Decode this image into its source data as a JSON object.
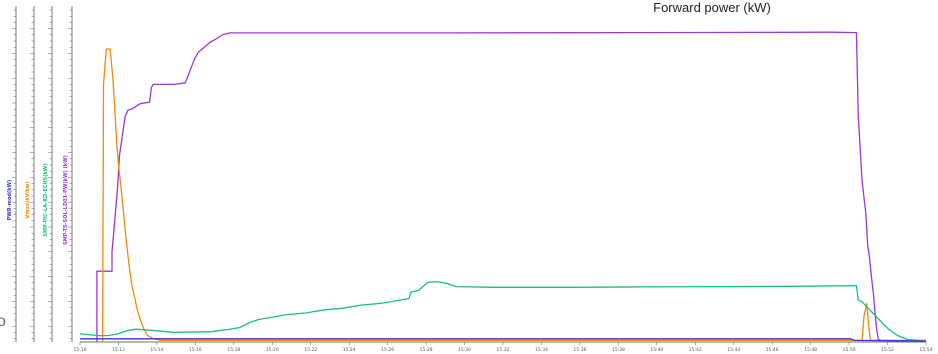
{
  "chart_data": {
    "type": "line",
    "title": "Forward power (kW)",
    "x_ticks": [
      "15:10",
      "15:12",
      "15:14",
      "15:16",
      "15:18",
      "15:20",
      "15:22",
      "15:24",
      "15:26",
      "15:28",
      "15:30",
      "15:32",
      "15:34",
      "15:36",
      "15:38",
      "15:40",
      "15:42",
      "15:44",
      "15:46",
      "15:48",
      "15:50",
      "15:52",
      "15:54"
    ],
    "xlim": [
      0,
      45
    ],
    "ylim": [
      0,
      100
    ],
    "grid": false,
    "axes": [
      {
        "label": "PWR-mod(kW)",
        "color": "#3b33d6"
      },
      {
        "label": "Vmov(kV/kw)",
        "color": "#f08a10"
      },
      {
        "label": "SMP-PIC-LA-RD-ECHS(kW)",
        "color": "#19c27a"
      },
      {
        "label": "SMP-TS-SOL-LD01-PW(kW) (kW)",
        "color": "#9b38d8"
      }
    ],
    "series": [
      {
        "color": "#9b38d8",
        "points": [
          [
            0.9,
            0
          ],
          [
            0.9,
            22
          ],
          [
            1.7,
            22
          ],
          [
            1.7,
            28
          ],
          [
            1.85,
            38
          ],
          [
            2.0,
            48
          ],
          [
            2.1,
            58
          ],
          [
            2.2,
            62
          ],
          [
            2.3,
            66
          ],
          [
            2.4,
            70
          ],
          [
            2.55,
            72
          ],
          [
            2.8,
            72.5
          ],
          [
            3.2,
            74
          ],
          [
            3.7,
            74.5
          ],
          [
            3.8,
            79
          ],
          [
            3.9,
            80
          ],
          [
            5.0,
            80
          ],
          [
            5.6,
            80.5
          ],
          [
            5.7,
            82
          ],
          [
            5.9,
            85
          ],
          [
            6.1,
            88
          ],
          [
            6.3,
            90
          ],
          [
            6.5,
            91
          ],
          [
            6.7,
            92
          ],
          [
            6.9,
            93
          ],
          [
            7.2,
            94
          ],
          [
            7.6,
            95.5
          ],
          [
            8.0,
            96
          ],
          [
            20,
            96
          ],
          [
            30,
            96.1
          ],
          [
            40,
            96.2
          ],
          [
            41.3,
            96.1
          ],
          [
            41.4,
            70
          ],
          [
            41.6,
            50
          ],
          [
            41.8,
            40
          ],
          [
            41.9,
            30
          ],
          [
            42.0,
            26
          ],
          [
            42.1,
            20
          ],
          [
            42.2,
            15
          ],
          [
            42.35,
            5
          ],
          [
            42.45,
            1
          ],
          [
            42.6,
            0.5
          ],
          [
            45,
            0.3
          ]
        ]
      },
      {
        "color": "#f08a10",
        "points": [
          [
            1.2,
            0
          ],
          [
            1.25,
            80
          ],
          [
            1.4,
            91
          ],
          [
            1.6,
            91
          ],
          [
            1.75,
            82
          ],
          [
            1.85,
            72
          ],
          [
            1.95,
            62
          ],
          [
            2.05,
            55
          ],
          [
            2.15,
            50
          ],
          [
            2.25,
            44
          ],
          [
            2.35,
            38
          ],
          [
            2.45,
            32
          ],
          [
            2.55,
            27
          ],
          [
            2.65,
            22
          ],
          [
            2.75,
            18
          ],
          [
            2.9,
            14
          ],
          [
            3.05,
            10
          ],
          [
            3.2,
            7
          ],
          [
            3.4,
            4
          ],
          [
            3.6,
            2
          ],
          [
            3.9,
            1
          ],
          [
            4.3,
            0.5
          ],
          [
            41.6,
            0.5
          ],
          [
            41.7,
            8
          ],
          [
            41.85,
            12
          ],
          [
            41.95,
            5
          ],
          [
            42.05,
            0.5
          ],
          [
            45,
            0.5
          ]
        ]
      },
      {
        "color": "#19c27a",
        "points": [
          [
            0,
            2.5
          ],
          [
            1,
            2
          ],
          [
            1.5,
            2
          ],
          [
            2,
            2.5
          ],
          [
            2.5,
            3.5
          ],
          [
            3,
            4
          ],
          [
            4,
            3.5
          ],
          [
            5,
            3
          ],
          [
            7,
            3.2
          ],
          [
            8,
            4
          ],
          [
            8.5,
            4.5
          ],
          [
            9,
            6
          ],
          [
            9.5,
            7
          ],
          [
            10,
            7.5
          ],
          [
            11,
            8.5
          ],
          [
            12,
            9
          ],
          [
            13,
            10
          ],
          [
            14,
            10.5
          ],
          [
            15,
            11.5
          ],
          [
            16,
            12
          ],
          [
            17,
            13
          ],
          [
            17.5,
            13.5
          ],
          [
            17.6,
            15.5
          ],
          [
            18,
            16
          ],
          [
            18.5,
            18.5
          ],
          [
            19,
            18.8
          ],
          [
            19.5,
            18.2
          ],
          [
            20,
            17.2
          ],
          [
            22,
            17
          ],
          [
            26,
            17
          ],
          [
            30,
            17.1
          ],
          [
            34,
            17.2
          ],
          [
            38,
            17.3
          ],
          [
            41.3,
            17.5
          ],
          [
            41.4,
            13
          ],
          [
            41.6,
            12.5
          ],
          [
            42,
            10
          ],
          [
            42.5,
            7
          ],
          [
            43,
            4
          ],
          [
            43.5,
            2
          ],
          [
            44,
            0.8
          ],
          [
            45,
            0.3
          ]
        ]
      },
      {
        "color": "#3b33d6",
        "points": [
          [
            0,
            1
          ],
          [
            4,
            1
          ],
          [
            10,
            1
          ],
          [
            20,
            1
          ],
          [
            30,
            1
          ],
          [
            41,
            1
          ],
          [
            41.2,
            0.5
          ],
          [
            45,
            0.3
          ]
        ]
      }
    ]
  },
  "stray_glyph": "o"
}
